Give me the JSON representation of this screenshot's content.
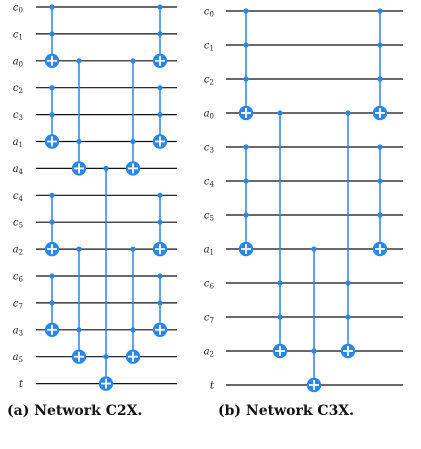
{
  "captions": {
    "a": "(a) Network C2X.",
    "b": "(b) Network C3X."
  },
  "colors": {
    "wire": "#111111",
    "gate": "#2a86e8",
    "label": "#222222"
  },
  "circuits": [
    {
      "name": "Network C2X",
      "qubits": [
        {
          "base": "c",
          "sub": "0"
        },
        {
          "base": "c",
          "sub": "1"
        },
        {
          "base": "a",
          "sub": "0"
        },
        {
          "base": "c",
          "sub": "2"
        },
        {
          "base": "c",
          "sub": "3"
        },
        {
          "base": "a",
          "sub": "1"
        },
        {
          "base": "a",
          "sub": "4"
        },
        {
          "base": "c",
          "sub": "4"
        },
        {
          "base": "c",
          "sub": "5"
        },
        {
          "base": "a",
          "sub": "2"
        },
        {
          "base": "c",
          "sub": "6"
        },
        {
          "base": "c",
          "sub": "7"
        },
        {
          "base": "a",
          "sub": "3"
        },
        {
          "base": "a",
          "sub": "5"
        },
        {
          "base": "t",
          "sub": ""
        }
      ],
      "gates": [
        {
          "controls": [
            0,
            1
          ],
          "target": 2
        },
        {
          "controls": [
            3,
            4
          ],
          "target": 5
        },
        {
          "controls": [
            7,
            8
          ],
          "target": 9
        },
        {
          "controls": [
            10,
            11
          ],
          "target": 12
        },
        {
          "controls": [
            2,
            5
          ],
          "target": 6
        },
        {
          "controls": [
            9,
            12
          ],
          "target": 13
        },
        {
          "controls": [
            6,
            13
          ],
          "target": 14
        },
        {
          "controls": [
            2,
            5
          ],
          "target": 6
        },
        {
          "controls": [
            9,
            12
          ],
          "target": 13
        },
        {
          "controls": [
            0,
            1
          ],
          "target": 2
        },
        {
          "controls": [
            3,
            4
          ],
          "target": 5
        },
        {
          "controls": [
            7,
            8
          ],
          "target": 9
        },
        {
          "controls": [
            10,
            11
          ],
          "target": 12
        }
      ]
    },
    {
      "name": "Network C3X",
      "qubits": [
        {
          "base": "c",
          "sub": "0"
        },
        {
          "base": "c",
          "sub": "1"
        },
        {
          "base": "c",
          "sub": "2"
        },
        {
          "base": "a",
          "sub": "0"
        },
        {
          "base": "c",
          "sub": "3"
        },
        {
          "base": "c",
          "sub": "4"
        },
        {
          "base": "c",
          "sub": "5"
        },
        {
          "base": "a",
          "sub": "1"
        },
        {
          "base": "c",
          "sub": "6"
        },
        {
          "base": "c",
          "sub": "7"
        },
        {
          "base": "a",
          "sub": "2"
        },
        {
          "base": "t",
          "sub": ""
        }
      ],
      "gates": [
        {
          "controls": [
            0,
            1,
            2
          ],
          "target": 3
        },
        {
          "controls": [
            4,
            5,
            6
          ],
          "target": 7
        },
        {
          "controls": [
            3,
            8,
            9
          ],
          "target": 10
        },
        {
          "controls": [
            7,
            10
          ],
          "target": 11
        },
        {
          "controls": [
            3,
            8,
            9
          ],
          "target": 10
        },
        {
          "controls": [
            0,
            1,
            2
          ],
          "target": 3
        },
        {
          "controls": [
            4,
            5,
            6
          ],
          "target": 7
        }
      ]
    }
  ]
}
